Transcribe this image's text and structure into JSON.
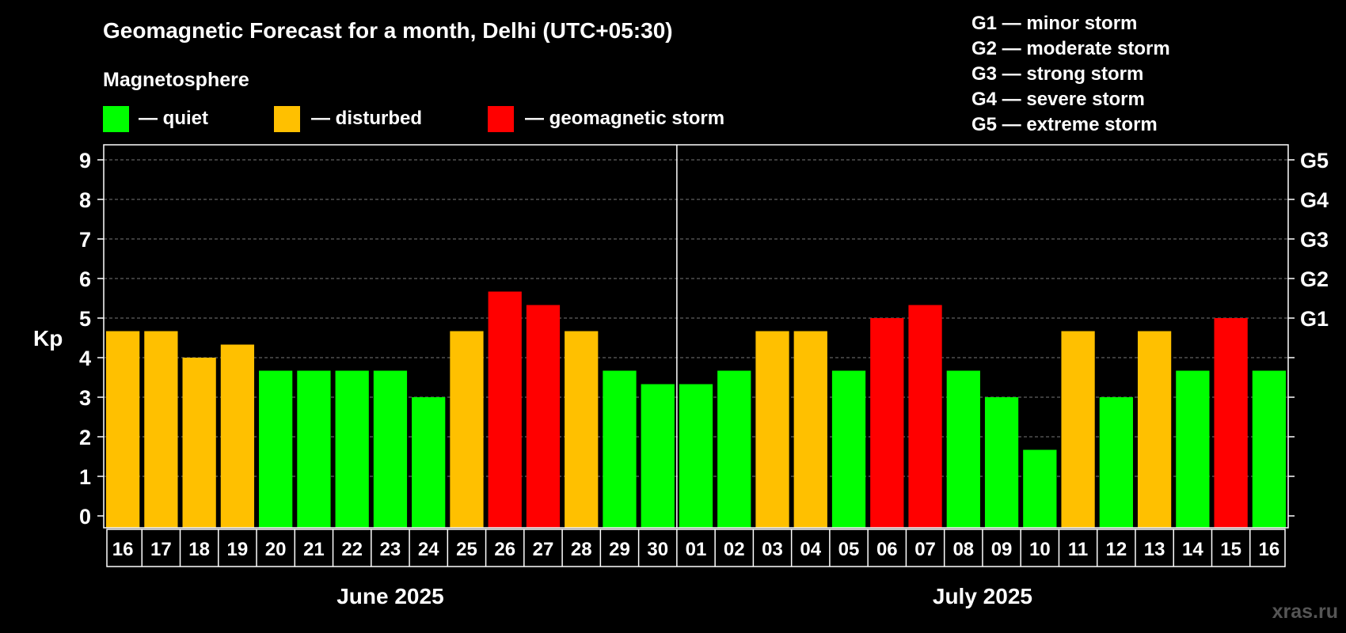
{
  "chart_data": {
    "type": "bar",
    "title": "Geomagnetic Forecast for a month, Delhi (UTC+05:30)",
    "legend_heading": "Magnetosphere",
    "legend": [
      {
        "label": "— quiet",
        "color": "#00ff00"
      },
      {
        "label": "— disturbed",
        "color": "#ffc000"
      },
      {
        "label": "— geomagnetic storm",
        "color": "#ff0000"
      }
    ],
    "storm_scale": [
      "G1 — minor storm",
      "G2 — moderate storm",
      "G3 — strong storm",
      "G4 — severe storm",
      "G5 — extreme storm"
    ],
    "ylabel": "Kp",
    "ylim": [
      0,
      9
    ],
    "yticks": [
      0,
      1,
      2,
      3,
      4,
      5,
      6,
      7,
      8,
      9
    ],
    "right_axis": [
      {
        "kp": 5,
        "label": "G1"
      },
      {
        "kp": 6,
        "label": "G2"
      },
      {
        "kp": 7,
        "label": "G3"
      },
      {
        "kp": 8,
        "label": "G4"
      },
      {
        "kp": 9,
        "label": "G5"
      }
    ],
    "grid": true,
    "months": [
      {
        "label": "June 2025",
        "days": 15
      },
      {
        "label": "July 2025",
        "days": 16
      }
    ],
    "categories": [
      "16",
      "17",
      "18",
      "19",
      "20",
      "21",
      "22",
      "23",
      "24",
      "25",
      "26",
      "27",
      "28",
      "29",
      "30",
      "01",
      "02",
      "03",
      "04",
      "05",
      "06",
      "07",
      "08",
      "09",
      "10",
      "11",
      "12",
      "13",
      "14",
      "15",
      "16"
    ],
    "values": [
      4.67,
      4.67,
      4.0,
      4.33,
      3.67,
      3.67,
      3.67,
      3.67,
      3.0,
      4.67,
      5.67,
      5.33,
      4.67,
      3.67,
      3.33,
      3.33,
      3.67,
      4.67,
      4.67,
      3.67,
      5.0,
      5.33,
      3.67,
      3.0,
      1.67,
      4.67,
      3.0,
      4.67,
      3.67,
      5.0,
      3.67
    ],
    "levels": [
      "disturbed",
      "disturbed",
      "disturbed",
      "disturbed",
      "quiet",
      "quiet",
      "quiet",
      "quiet",
      "quiet",
      "disturbed",
      "storm",
      "storm",
      "disturbed",
      "quiet",
      "quiet",
      "quiet",
      "quiet",
      "disturbed",
      "disturbed",
      "quiet",
      "storm",
      "storm",
      "quiet",
      "quiet",
      "quiet",
      "disturbed",
      "quiet",
      "disturbed",
      "quiet",
      "storm",
      "quiet"
    ],
    "level_colors": {
      "quiet": "#00ff00",
      "disturbed": "#ffc000",
      "storm": "#ff0000"
    }
  },
  "watermark": "xras.ru"
}
